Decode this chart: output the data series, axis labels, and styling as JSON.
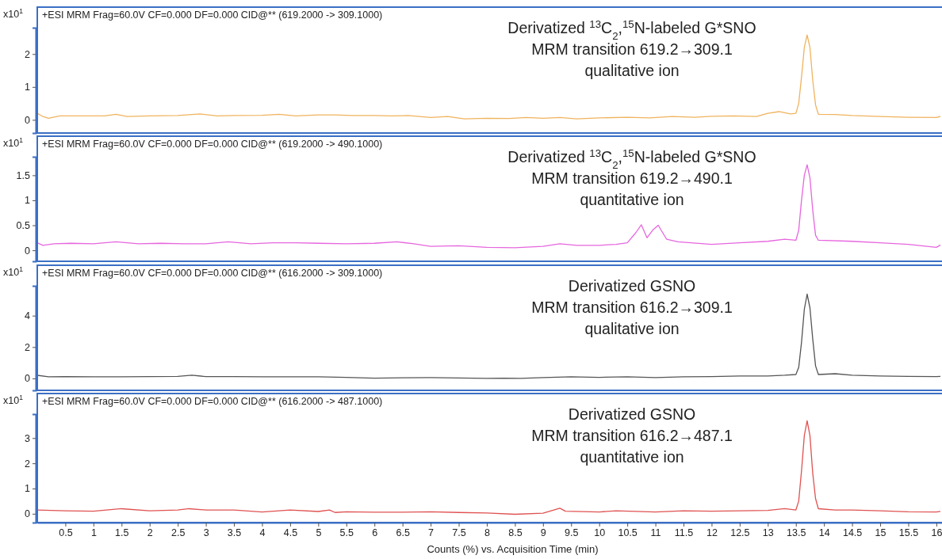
{
  "chart_data": [
    {
      "type": "line",
      "title": "+ESI MRM Frag=60.0V CF=0.000 DF=0.000 CID@** (619.2000 -> 309.1000)",
      "ylabel": "x10$^{1}$",
      "annotations": [
        "Derivatized $^{13}$C$_{2}$,$^{15}$N-labeled G*SNO\nMRM transition 619.2→309.1\nqualitative ion"
      ],
      "x": [
        0,
        0.1,
        0.2,
        0.4,
        0.8,
        1.2,
        1.4,
        1.6,
        2,
        2.5,
        2.9,
        3.2,
        3.5,
        4,
        4.3,
        4.6,
        5,
        5.3,
        5.6,
        6,
        6.3,
        6.6,
        7,
        7.3,
        7.6,
        8,
        8.4,
        8.7,
        9,
        9.3,
        9.6,
        10,
        10.5,
        10.9,
        11.3,
        11.7,
        12,
        12.4,
        12.8,
        13,
        13.2,
        13.4,
        13.5,
        13.55,
        13.6,
        13.65,
        13.7,
        13.75,
        13.8,
        13.85,
        13.9,
        14.2,
        14.5,
        15,
        15.5,
        16,
        16.1
      ],
      "series": [
        {
          "color": "#f0b35e",
          "values": [
            0.2,
            0.1,
            0.05,
            0.12,
            0.12,
            0.12,
            0.17,
            0.1,
            0.12,
            0.13,
            0.18,
            0.12,
            0.13,
            0.14,
            0.17,
            0.12,
            0.15,
            0.15,
            0.13,
            0.13,
            0.12,
            0.13,
            0.07,
            0.1,
            0.03,
            0.05,
            0.04,
            0.07,
            0.05,
            0.07,
            0.03,
            0.06,
            0.08,
            0.06,
            0.1,
            0.08,
            0.11,
            0.12,
            0.1,
            0.2,
            0.25,
            0.18,
            0.2,
            0.5,
            1.3,
            2.2,
            2.58,
            2.2,
            1.2,
            0.45,
            0.17,
            0.16,
            0.13,
            0.1,
            0.08,
            0.07,
            0.12
          ]
        }
      ],
      "xlim": [
        0,
        16.1
      ],
      "ylim": [
        -0.4,
        2.8
      ],
      "yticks": [
        0,
        1,
        2
      ],
      "tick_labels": "y"
    },
    {
      "type": "line",
      "title": "+ESI MRM Frag=60.0V CF=0.000 DF=0.000 CID@** (619.2000 -> 490.1000)",
      "ylabel": "x10$^{1}$",
      "annotations": [
        "Derivatized $^{13}$C$_{2}$,$^{15}$N-labeled G*SNO\nMRM transition 619.2→490.1\nquantitative ion"
      ],
      "x": [
        0,
        0.1,
        0.3,
        0.6,
        1,
        1.4,
        1.8,
        2.2,
        2.6,
        3,
        3.4,
        3.8,
        4.2,
        4.6,
        5,
        5.5,
        6,
        6.4,
        6.7,
        7,
        7.5,
        8,
        8.5,
        9,
        9.3,
        9.6,
        10,
        10.3,
        10.5,
        10.65,
        10.75,
        10.85,
        10.95,
        11.05,
        11.2,
        11.4,
        12,
        12.5,
        13,
        13.3,
        13.5,
        13.55,
        13.6,
        13.65,
        13.7,
        13.75,
        13.8,
        13.85,
        13.9,
        14.5,
        15,
        15.5,
        16,
        16.1
      ],
      "series": [
        {
          "color": "#e666de",
          "values": [
            0.15,
            0.1,
            0.13,
            0.14,
            0.13,
            0.17,
            0.13,
            0.14,
            0.13,
            0.13,
            0.17,
            0.13,
            0.15,
            0.15,
            0.14,
            0.13,
            0.14,
            0.17,
            0.13,
            0.08,
            0.09,
            0.06,
            0.05,
            0.08,
            0.13,
            0.1,
            0.1,
            0.12,
            0.15,
            0.35,
            0.51,
            0.25,
            0.4,
            0.5,
            0.22,
            0.17,
            0.12,
            0.15,
            0.18,
            0.22,
            0.2,
            0.4,
            1.0,
            1.5,
            1.71,
            1.45,
            0.8,
            0.3,
            0.2,
            0.18,
            0.15,
            0.12,
            0.06,
            0.12
          ]
        }
      ],
      "xlim": [
        0,
        16.1
      ],
      "ylim": [
        -0.22,
        1.87
      ],
      "yticks": [
        0,
        {
          "value": 0.5,
          "label": "0.5"
        },
        1,
        {
          "value": 1.5,
          "label": "1.5"
        }
      ],
      "tick_labels": "y"
    },
    {
      "type": "line",
      "title": "+ESI MRM Frag=60.0V CF=0.000 DF=0.000 CID@** (616.2000 -> 309.1000)",
      "ylabel": "x10$^{1}$",
      "annotations": [
        "Derivatized GSNO\nMRM transition 616.2→309.1\nqualitative ion"
      ],
      "x": [
        0,
        0.2,
        0.5,
        1,
        1.5,
        2,
        2.5,
        2.75,
        3,
        3.5,
        4,
        4.5,
        5,
        5.5,
        6,
        6.5,
        7,
        7.5,
        8,
        8.3,
        8.6,
        9,
        9.5,
        10,
        10.5,
        11,
        11.5,
        12,
        12.5,
        13,
        13.3,
        13.5,
        13.55,
        13.6,
        13.65,
        13.7,
        13.75,
        13.8,
        13.85,
        13.9,
        14.2,
        14.5,
        15,
        15.5,
        16,
        16.1
      ],
      "series": [
        {
          "color": "#555555",
          "values": [
            0.2,
            0.1,
            0.12,
            0.1,
            0.1,
            0.12,
            0.13,
            0.2,
            0.12,
            0.12,
            0.1,
            0.1,
            0.1,
            0.07,
            0.02,
            0.04,
            0.05,
            0.03,
            0.0,
            0.02,
            0.0,
            0.05,
            0.1,
            0.07,
            0.1,
            0.05,
            0.1,
            0.12,
            0.15,
            0.15,
            0.2,
            0.25,
            0.7,
            2.3,
            4.4,
            5.37,
            4.5,
            2.5,
            0.8,
            0.25,
            0.3,
            0.2,
            0.15,
            0.13,
            0.12,
            0.13
          ]
        }
      ],
      "xlim": [
        0,
        16.1
      ],
      "ylim": [
        -0.76,
        5.9
      ],
      "yticks": [
        0,
        2,
        4
      ],
      "tick_labels": "y"
    },
    {
      "type": "line",
      "title": "+ESI MRM Frag=60.0V CF=0.000 DF=0.000 CID@** (616.2000 -> 487.1000)",
      "ylabel": "x10$^{1}$",
      "xlabel": "Counts (%) vs. Acquisition Time (min)",
      "annotations": [
        "Derivatized GSNO\nMRM transition 616.2→487.1\nquantitative ion"
      ],
      "x": [
        0,
        0.5,
        1,
        1.5,
        2,
        2.5,
        2.7,
        3,
        3.5,
        4,
        4.5,
        5,
        5.2,
        5.3,
        5.5,
        6,
        6.5,
        7,
        7.5,
        8,
        8.5,
        9,
        9.3,
        9.4,
        10,
        10.3,
        11,
        11.5,
        12,
        12.5,
        13,
        13.3,
        13.5,
        13.55,
        13.6,
        13.65,
        13.7,
        13.75,
        13.8,
        13.85,
        13.9,
        14.2,
        14.5,
        15,
        15.5,
        16,
        16.1
      ],
      "series": [
        {
          "color": "#e05252",
          "values": [
            0.15,
            0.12,
            0.1,
            0.2,
            0.12,
            0.15,
            0.2,
            0.15,
            0.15,
            0.07,
            0.15,
            0.09,
            0.15,
            0.05,
            0.08,
            0.06,
            0.06,
            0.08,
            0.05,
            0.03,
            -0.02,
            0.02,
            0.22,
            0.1,
            0.07,
            0.12,
            0.07,
            0.12,
            0.1,
            0.12,
            0.13,
            0.2,
            0.15,
            0.5,
            1.7,
            3.1,
            3.69,
            3.1,
            1.6,
            0.6,
            0.2,
            0.15,
            0.15,
            0.12,
            0.08,
            0.07,
            0.1
          ]
        }
      ],
      "xlim": [
        0,
        16.1
      ],
      "ylim": [
        -0.35,
        3.95
      ],
      "xticks": [
        0.5,
        1,
        1.5,
        2,
        2.5,
        3,
        3.5,
        4,
        4.5,
        5,
        5.5,
        6,
        6.5,
        7,
        7.5,
        8,
        8.5,
        9,
        9.5,
        10,
        10.5,
        11,
        11.5,
        12,
        12.5,
        13,
        13.5,
        14,
        14.5,
        15,
        15.5,
        16
      ],
      "yticks": [
        0,
        1,
        2,
        3
      ]
    }
  ]
}
